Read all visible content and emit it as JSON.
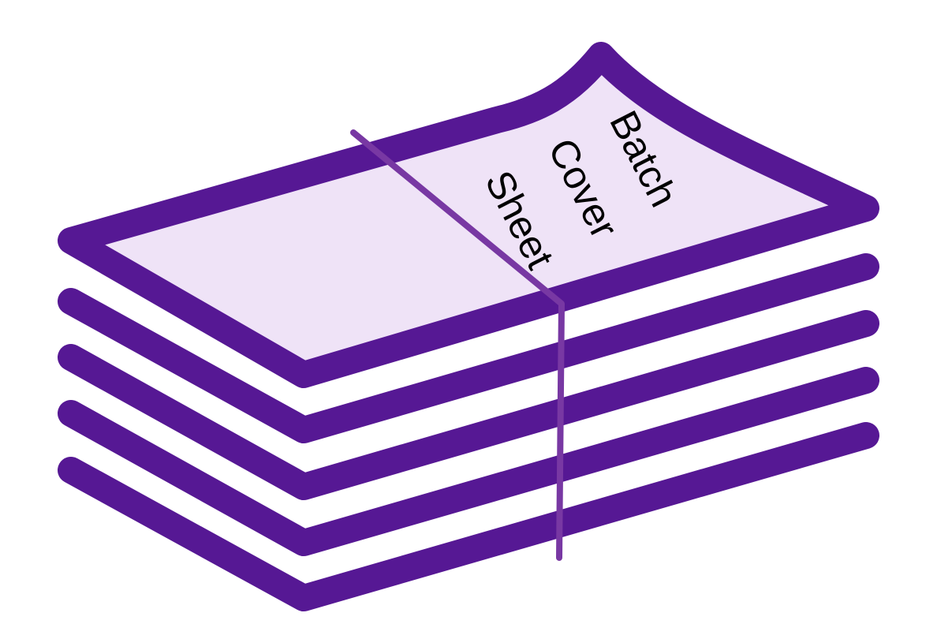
{
  "cover_sheet": {
    "line1": "Batch",
    "line2": "Cover",
    "line3": "Sheet"
  },
  "colors": {
    "outline": "#561894",
    "sheet_fill": "#EFE3F7",
    "band": "#7838A3",
    "text": "#000000",
    "background": "#FFFFFF"
  },
  "icon": "paper-stack-with-band-icon"
}
